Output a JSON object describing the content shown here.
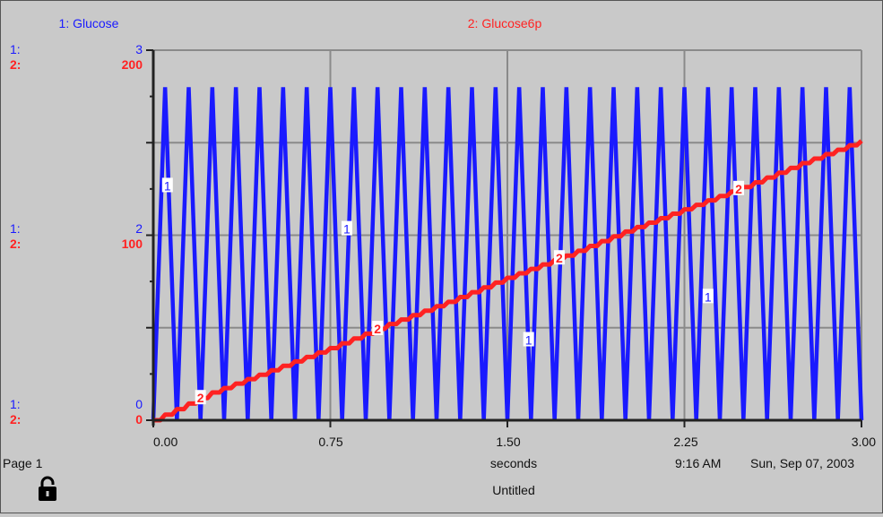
{
  "footer": {
    "page_label": "Page 1",
    "x_unit": "seconds",
    "time": "9:16 AM",
    "date": "Sun, Sep 07, 2003",
    "doc_title": "Untitled",
    "lock_icon": "open-lock-icon"
  },
  "colors": {
    "series1": "#1a1aff",
    "series2": "#ff2222",
    "grid": "#8a8a8a",
    "axis": "#222222"
  },
  "chart_data": {
    "type": "line",
    "xlabel": "seconds",
    "xlim": [
      0,
      3.0
    ],
    "x_ticks": [
      "0.00",
      "0.75",
      "1.50",
      "2.25",
      "3.00"
    ],
    "grid": true,
    "axis_row_labels": [
      "1:",
      "2:"
    ],
    "series": [
      {
        "name": "1: Glucose",
        "marker": "1",
        "ylim": [
          0,
          3
        ],
        "y_ticks": [
          "0",
          "2",
          "3"
        ],
        "waveform": "triangle",
        "period": 0.1,
        "min": 0,
        "max": 2.7,
        "marker_x": [
          0.06,
          0.82,
          1.59,
          2.35
        ]
      },
      {
        "name": "2: Glucose6p",
        "marker": "2",
        "ylim": [
          0,
          200
        ],
        "y_ticks": [
          "0",
          "100",
          "200"
        ],
        "x": [
          0.0,
          0.25,
          0.5,
          0.75,
          1.0,
          1.25,
          1.5,
          1.75,
          2.0,
          2.25,
          2.5,
          2.75,
          3.0
        ],
        "values": [
          0,
          15,
          27,
          39,
          52,
          64,
          77,
          89,
          102,
          114,
          126,
          139,
          151
        ],
        "marker_x": [
          0.2,
          0.95,
          1.72,
          2.48
        ]
      }
    ]
  }
}
